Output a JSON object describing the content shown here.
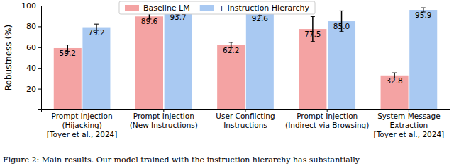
{
  "chart_data": {
    "type": "bar",
    "y_label": "Robustness (%)",
    "annotations": [
      "Figure 2: Main results. Our model trained with the instruction hierarchy has substantially"
    ],
    "categories": [
      "Prompt Injection\n(Hijacking)\n[Toyer et al., 2024]",
      "Prompt Injection\n(New Instructions)",
      "User Conflicting\nInstructions",
      "Prompt Injection\n(Indirect via Browsing)",
      "System Message\nExtraction\n[Toyer et al., 2024]"
    ],
    "series": [
      {
        "name": "Baseline LM",
        "color": "#f4a3a3",
        "values": [
          59.2,
          89.6,
          62.2,
          77.5,
          32.8
        ],
        "errors": [
          3,
          2.5,
          2.5,
          12,
          2.5
        ]
      },
      {
        "name": "+ Instruction Hierarchy",
        "color": "#a9c9f2",
        "values": [
          79.2,
          93.7,
          92.6,
          85.0,
          95.9
        ],
        "value_labels": [
          "79.2",
          "93.7",
          "92.6",
          "85.0",
          "95.9"
        ],
        "errors": [
          3,
          2.5,
          2,
          10,
          2
        ]
      }
    ],
    "ylim": [
      0,
      100
    ],
    "yticks": [
      20,
      40,
      60,
      80,
      100
    ],
    "grid": false,
    "legend": "top",
    "data_labels": true
  }
}
